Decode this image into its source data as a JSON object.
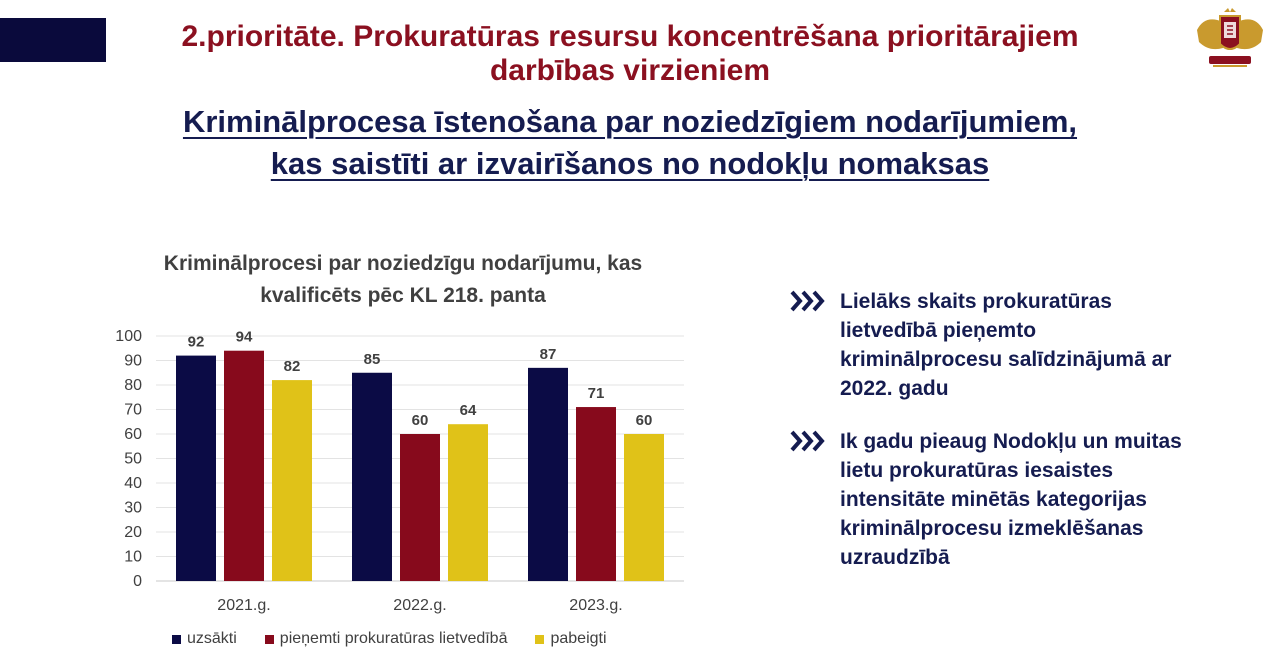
{
  "header": {
    "title_line1": "2.prioritāte. Prokuratūras resursu koncentrēšana prioritārajiem",
    "title_line2": "darbības virzieniem",
    "subtitle_line1": "Kriminālprocesa īstenošana par noziedzīgiem nodarījumiem,",
    "subtitle_line2": "kas saistīti ar izvairīšanos no nodokļu nomaksas"
  },
  "colors": {
    "accent": "#0a0a3c",
    "title": "#8b1020",
    "subtitle": "#151c50"
  },
  "logo": {
    "icon": "prosecutor-crest-icon"
  },
  "chart_data": {
    "type": "bar",
    "title_line1": "Kriminālprocesi par noziedzīgu nodarījumu, kas",
    "title_line2": "kvalificēts pēc KL 218. panta",
    "categories": [
      "2021.g.",
      "2022.g.",
      "2023.g."
    ],
    "series": [
      {
        "name": "uzsākti",
        "values": [
          92,
          85,
          87
        ],
        "color": "#0b0b45"
      },
      {
        "name": "pieņemti prokuratūras lietvedībā",
        "values": [
          94,
          60,
          71
        ],
        "color": "#870a1c"
      },
      {
        "name": "pabeigti",
        "values": [
          82,
          64,
          60
        ],
        "color": "#e0c218"
      }
    ],
    "ylim": [
      0,
      100
    ],
    "yticks": [
      0,
      10,
      20,
      30,
      40,
      50,
      60,
      70,
      80,
      90,
      100
    ],
    "grid": true,
    "legend": "bottom"
  },
  "bullets": [
    {
      "icon": "double-chevron-right-icon",
      "text": "Lielāks skaits prokuratūras lietvedībā pieņemto kriminālprocesu salīdzinājumā ar 2022. gadu"
    },
    {
      "icon": "double-chevron-right-icon",
      "text": "Ik gadu pieaug Nodokļu un muitas lietu prokuratūras iesaistes intensitāte minētās kategorijas kriminālprocesu izmeklēšanas uzraudzībā"
    }
  ]
}
